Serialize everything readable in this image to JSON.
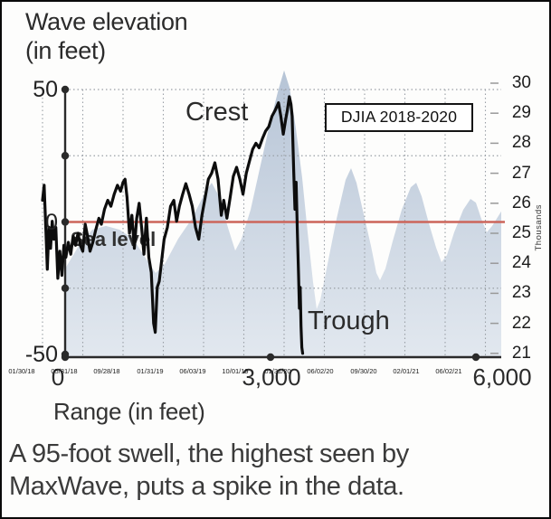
{
  "caption": {
    "line1": "A 95-foot swell, the highest seen by",
    "line2": "MaxWave, puts a spike in the data."
  },
  "colors": {
    "wave_fill_top": "#b6c4d6",
    "wave_fill_bottom": "#e2e8ef",
    "sea_level_line": "#cc655a",
    "djia_line": "#0d0d0d",
    "axis": "#2a2a2a",
    "grid_dotted": "#9aa0a6",
    "right_tick_dash": "#999999",
    "background": "#fdfdfc"
  },
  "chart_data": {
    "type": "line",
    "title_lines": [
      "Wave elevation",
      "(in feet)"
    ],
    "xlabel": "Range (in feet)",
    "annotations": {
      "crest": "Crest",
      "sea_level": "Sea level",
      "trough": "Trough",
      "box": "DJIA 2018-2020"
    },
    "left_axis": {
      "lim": [
        -50,
        50
      ],
      "labeled_ticks": [
        [
          50,
          "50"
        ],
        [
          0,
          "0"
        ],
        [
          -50,
          "-50"
        ]
      ],
      "dot_ticks_ft": [
        50,
        25,
        0,
        -25,
        -50
      ]
    },
    "right_axis": {
      "lim": [
        21,
        30
      ],
      "ticks": [
        30,
        29,
        28,
        27,
        26,
        25,
        24,
        23,
        22,
        21
      ],
      "unit": "Thousands"
    },
    "x_axis": {
      "lim_ft": [
        0,
        6000
      ],
      "ticks": [
        [
          0,
          "0"
        ],
        [
          3000,
          "3,000"
        ],
        [
          6000,
          "6,000"
        ]
      ],
      "date_ticks": [
        "01/30/18",
        "05/31/18",
        "09/28/18",
        "01/31/19",
        "06/03/19",
        "10/01/19",
        "01/31/20",
        "06/02/20",
        "09/30/20",
        "02/01/21",
        "06/02/21"
      ]
    },
    "grid": {
      "h_dotted_ft": [
        50,
        25,
        -25
      ],
      "v_dotted_lines": 12
    },
    "sea_level_ft": 0,
    "wave_profile_ft": [
      [
        0,
        -17.6
      ],
      [
        198,
        -9
      ],
      [
        397,
        -2.9
      ],
      [
        595,
        -1.5
      ],
      [
        793,
        -2.9
      ],
      [
        991,
        -6.3
      ],
      [
        1189,
        -14.2
      ],
      [
        1322,
        -19.3
      ],
      [
        1454,
        -15.9
      ],
      [
        1652,
        -6.3
      ],
      [
        1850,
        1.2
      ],
      [
        2048,
        11.4
      ],
      [
        2141,
        14.8
      ],
      [
        2247,
        9.7
      ],
      [
        2379,
        -2.2
      ],
      [
        2485,
        -10.8
      ],
      [
        2577,
        -6.3
      ],
      [
        2709,
        4.6
      ],
      [
        2841,
        20
      ],
      [
        2973,
        35.3
      ],
      [
        3106,
        49
      ],
      [
        3198,
        57.2
      ],
      [
        3277,
        50.7
      ],
      [
        3370,
        35.3
      ],
      [
        3462,
        16.6
      ],
      [
        3542,
        -3.9
      ],
      [
        3621,
        -22.7
      ],
      [
        3674,
        -32.9
      ],
      [
        3727,
        -29.5
      ],
      [
        3832,
        -15.9
      ],
      [
        3965,
        1.2
      ],
      [
        4097,
        15.9
      ],
      [
        4176,
        20.3
      ],
      [
        4255,
        14.8
      ],
      [
        4361,
        2.9
      ],
      [
        4467,
        -9
      ],
      [
        4546,
        -19.3
      ],
      [
        4599,
        -22
      ],
      [
        4678,
        -17.6
      ],
      [
        4784,
        -7.3
      ],
      [
        4916,
        4.6
      ],
      [
        5048,
        13.1
      ],
      [
        5128,
        14.8
      ],
      [
        5207,
        9.7
      ],
      [
        5313,
        -0.5
      ],
      [
        5418,
        -9.7
      ],
      [
        5498,
        -15.2
      ],
      [
        5577,
        -12.5
      ],
      [
        5683,
        -3.9
      ],
      [
        5815,
        4.6
      ],
      [
        5921,
        8.7
      ],
      [
        6000,
        7.3
      ],
      [
        6079,
        1.2
      ],
      [
        6159,
        -3.9
      ],
      [
        6238,
        -1.5
      ],
      [
        6344,
        2.9
      ],
      [
        6370,
        4.0
      ]
    ],
    "djia_series": {
      "name": "DJIA 2018-2020",
      "x_unit": "date tick index (0 = 01/30/18, 1 tick ≈ 4 months)",
      "y_unit": "thousands of points",
      "points": [
        [
          0,
          26.1
        ],
        [
          0.04,
          26.6
        ],
        [
          0.08,
          25.2
        ],
        [
          0.12,
          23.8
        ],
        [
          0.16,
          25.2
        ],
        [
          0.2,
          24.5
        ],
        [
          0.24,
          25.4
        ],
        [
          0.28,
          24.8
        ],
        [
          0.33,
          25.2
        ],
        [
          0.38,
          23.5
        ],
        [
          0.43,
          24.4
        ],
        [
          0.48,
          23.6
        ],
        [
          0.53,
          24.6
        ],
        [
          0.58,
          24.2
        ],
        [
          0.64,
          24.7
        ],
        [
          0.7,
          24.3
        ],
        [
          0.76,
          24.9
        ],
        [
          0.82,
          24.6
        ],
        [
          0.88,
          25.0
        ],
        [
          0.94,
          24.6
        ],
        [
          1.0,
          24.4
        ],
        [
          1.06,
          25.3
        ],
        [
          1.12,
          24.9
        ],
        [
          1.18,
          24.4
        ],
        [
          1.25,
          24.7
        ],
        [
          1.32,
          25.1
        ],
        [
          1.4,
          25.5
        ],
        [
          1.46,
          25.3
        ],
        [
          1.54,
          25.8
        ],
        [
          1.62,
          26.1
        ],
        [
          1.7,
          25.9
        ],
        [
          1.78,
          26.3
        ],
        [
          1.86,
          26.6
        ],
        [
          1.94,
          26.4
        ],
        [
          2.0,
          26.7
        ],
        [
          2.05,
          26.8
        ],
        [
          2.1,
          26.2
        ],
        [
          2.16,
          25.0
        ],
        [
          2.22,
          25.6
        ],
        [
          2.28,
          24.5
        ],
        [
          2.34,
          25.5
        ],
        [
          2.4,
          26.0
        ],
        [
          2.46,
          25.2
        ],
        [
          2.52,
          24.3
        ],
        [
          2.58,
          25.5
        ],
        [
          2.64,
          24.2
        ],
        [
          2.7,
          23.7
        ],
        [
          2.76,
          22.0
        ],
        [
          2.8,
          21.7
        ],
        [
          2.85,
          23.2
        ],
        [
          2.9,
          23.4
        ],
        [
          2.96,
          24.1
        ],
        [
          3.02,
          24.8
        ],
        [
          3.1,
          25.2
        ],
        [
          3.18,
          25.9
        ],
        [
          3.26,
          26.1
        ],
        [
          3.33,
          25.4
        ],
        [
          3.4,
          25.9
        ],
        [
          3.48,
          26.3
        ],
        [
          3.56,
          26.65
        ],
        [
          3.64,
          26.3
        ],
        [
          3.72,
          25.9
        ],
        [
          3.8,
          25.2
        ],
        [
          3.88,
          24.8
        ],
        [
          3.96,
          25.6
        ],
        [
          4.04,
          26.2
        ],
        [
          4.12,
          26.8
        ],
        [
          4.2,
          27.0
        ],
        [
          4.28,
          27.35
        ],
        [
          4.36,
          26.8
        ],
        [
          4.44,
          25.6
        ],
        [
          4.5,
          26.1
        ],
        [
          4.58,
          25.5
        ],
        [
          4.66,
          26.2
        ],
        [
          4.74,
          26.9
        ],
        [
          4.82,
          27.2
        ],
        [
          4.9,
          26.8
        ],
        [
          4.98,
          26.3
        ],
        [
          5.06,
          27.0
        ],
        [
          5.14,
          27.4
        ],
        [
          5.22,
          27.8
        ],
        [
          5.3,
          28.0
        ],
        [
          5.38,
          27.85
        ],
        [
          5.46,
          28.15
        ],
        [
          5.54,
          28.4
        ],
        [
          5.62,
          28.55
        ],
        [
          5.7,
          28.9
        ],
        [
          5.78,
          29.1
        ],
        [
          5.86,
          29.35
        ],
        [
          5.92,
          28.9
        ],
        [
          5.98,
          28.3
        ],
        [
          6.04,
          28.8
        ],
        [
          6.08,
          29.1
        ],
        [
          6.13,
          29.55
        ],
        [
          6.17,
          29.3
        ],
        [
          6.2,
          28.9
        ],
        [
          6.24,
          27.0
        ],
        [
          6.27,
          25.8
        ],
        [
          6.3,
          26.7
        ],
        [
          6.33,
          25.0
        ],
        [
          6.36,
          23.6
        ],
        [
          6.38,
          22.5
        ],
        [
          6.4,
          23.2
        ],
        [
          6.42,
          21.9
        ],
        [
          6.44,
          21.2
        ],
        [
          6.46,
          21.0
        ]
      ]
    }
  }
}
